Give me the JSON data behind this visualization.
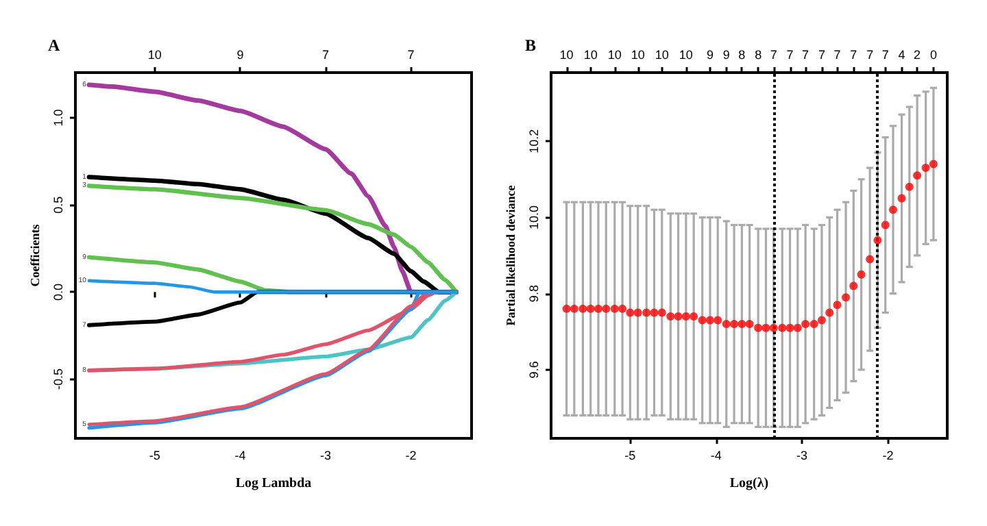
{
  "chart_data": [
    {
      "type": "line",
      "title": "A",
      "xlabel": "Log Lambda",
      "ylabel": "Coefficients",
      "line_style": "solid",
      "xlim": [
        -5.93,
        -1.29
      ],
      "xticks": [
        -5,
        -4,
        -3,
        -2
      ],
      "annotations": [
        {
          "text": "10",
          "x": -5
        },
        {
          "text": "9",
          "x": -4
        },
        {
          "text": "7",
          "x": -3
        },
        {
          "text": "7",
          "x": -2
        }
      ],
      "ylim": [
        -0.84,
        1.26
      ],
      "yticks": [
        {
          "value": -0.5,
          "label": "-0.5"
        },
        {
          "value": 0,
          "label": "0.0"
        },
        {
          "value": 0.5,
          "label": "0.5"
        },
        {
          "value": 1,
          "label": "1.0"
        }
      ],
      "series": [
        {
          "name": "6",
          "color": "#a53a9e",
          "x": [
            -5.77,
            -5.5,
            -5,
            -4.5,
            -4,
            -3.5,
            -3,
            -2.7,
            -2.5,
            -2.3,
            -2.2,
            -2.1,
            -2,
            -1.47
          ],
          "values": [
            1.19,
            1.18,
            1.15,
            1.1,
            1.04,
            0.95,
            0.82,
            0.68,
            0.55,
            0.38,
            0.26,
            0.12,
            0,
            0
          ]
        },
        {
          "name": "1",
          "color": "#000000",
          "x": [
            -5.77,
            -5,
            -4.5,
            -4,
            -3.5,
            -3,
            -2.5,
            -2.2,
            -2,
            -1.85,
            -1.67,
            -1.47
          ],
          "values": [
            0.66,
            0.64,
            0.62,
            0.59,
            0.53,
            0.45,
            0.31,
            0.22,
            0.12,
            0.06,
            0,
            0
          ]
        },
        {
          "name": "3",
          "color": "#61c04f",
          "x": [
            -5.77,
            -5,
            -4,
            -3,
            -2.5,
            -2.2,
            -2,
            -1.8,
            -1.6,
            -1.47
          ],
          "values": [
            0.61,
            0.59,
            0.54,
            0.47,
            0.39,
            0.33,
            0.26,
            0.17,
            0.07,
            0
          ]
        },
        {
          "name": "9",
          "color": "#61c04f",
          "x": [
            -5.77,
            -5,
            -4.5,
            -4,
            -3.7,
            -3.4,
            -1.47
          ],
          "values": [
            0.2,
            0.17,
            0.13,
            0.06,
            0.01,
            0,
            0
          ]
        },
        {
          "name": "7",
          "color": "#000000",
          "x": [
            -5.77,
            -5,
            -4.5,
            -4,
            -3.8,
            -1.47
          ],
          "values": [
            -0.19,
            -0.17,
            -0.13,
            -0.06,
            0,
            0
          ]
        },
        {
          "name": "8",
          "color": "#4cc3c6",
          "x": [
            -5.77,
            -5,
            -4,
            -3,
            -2.5,
            -2,
            -1.8,
            -1.6,
            -1.47
          ],
          "values": [
            -0.45,
            -0.44,
            -0.41,
            -0.37,
            -0.33,
            -0.26,
            -0.16,
            -0.05,
            0
          ]
        },
        {
          "color": "#df536b",
          "x": [
            -5.77,
            -5,
            -4,
            -3.5,
            -3,
            -2.5,
            -2,
            -1.8,
            -1.7,
            -1.47
          ],
          "values": [
            -0.45,
            -0.44,
            -0.4,
            -0.36,
            -0.3,
            -0.22,
            -0.1,
            -0.02,
            0,
            0
          ]
        },
        {
          "color": "#2297e6",
          "x": [
            -5.77,
            -5,
            -4,
            -3,
            -2.5,
            -2,
            -1.9,
            -1.47
          ],
          "values": [
            -0.78,
            -0.75,
            -0.67,
            -0.48,
            -0.34,
            -0.1,
            0,
            0
          ]
        },
        {
          "name": "5",
          "color": "#df536b",
          "x": [
            -5.77,
            -5,
            -4,
            -3,
            -2.5,
            -2,
            -1.8,
            -1.47
          ],
          "values": [
            -0.76,
            -0.74,
            -0.66,
            -0.47,
            -0.33,
            -0.08,
            0,
            0
          ]
        },
        {
          "name": "10",
          "color": "#2297e6",
          "x": [
            -5.77,
            -5,
            -4.6,
            -4.3,
            -1.47
          ],
          "values": [
            0.065,
            0.05,
            0.03,
            0,
            0
          ]
        }
      ]
    },
    {
      "type": "scatter",
      "title": "B",
      "xlabel": "Log(λ)",
      "ylabel": "Partial likelihood deviance",
      "marker": "circle",
      "xlim": [
        -5.92,
        -1.31
      ],
      "xticks": [
        -5,
        -4,
        -3,
        -2
      ],
      "annotations": [
        {
          "text": "10",
          "x": -5.74
        },
        {
          "text": "10",
          "x": -5.46
        },
        {
          "text": "10",
          "x": -5.18
        },
        {
          "text": "10",
          "x": -4.91
        },
        {
          "text": "10",
          "x": -4.63
        },
        {
          "text": "10",
          "x": -4.35
        },
        {
          "text": "9",
          "x": -4.07
        },
        {
          "text": "9",
          "x": -3.88
        },
        {
          "text": "8",
          "x": -3.7
        },
        {
          "text": "8",
          "x": -3.51
        },
        {
          "text": "7",
          "x": -3.33
        },
        {
          "text": "7",
          "x": -3.14
        },
        {
          "text": "7",
          "x": -2.96
        },
        {
          "text": "7",
          "x": -2.77
        },
        {
          "text": "7",
          "x": -2.59
        },
        {
          "text": "7",
          "x": -2.4
        },
        {
          "text": "7",
          "x": -2.21
        },
        {
          "text": "7",
          "x": -2.03
        },
        {
          "text": "4",
          "x": -1.84
        },
        {
          "text": "2",
          "x": -1.66
        },
        {
          "text": "0",
          "x": -1.47
        }
      ],
      "ylim": [
        9.42,
        10.38
      ],
      "yticks": [
        9.6,
        9.8,
        {
          "value": 10,
          "label": "10.0"
        },
        10.2
      ],
      "ref_lines": [
        {
          "axis": "x",
          "value": -3.33,
          "color": "#000000",
          "line_style": "dotted"
        },
        {
          "axis": "x",
          "value": -2.12,
          "color": "#000000",
          "line_style": "dotted"
        }
      ],
      "series": [
        {
          "color": "#ff0000",
          "x": [
            -5.74,
            -5.65,
            -5.55,
            -5.46,
            -5.37,
            -5.28,
            -5.18,
            -5.09,
            -5.0,
            -4.91,
            -4.81,
            -4.72,
            -4.63,
            -4.53,
            -4.44,
            -4.35,
            -4.26,
            -4.16,
            -4.07,
            -3.98,
            -3.88,
            -3.79,
            -3.7,
            -3.61,
            -3.51,
            -3.42,
            -3.33,
            -3.23,
            -3.14,
            -3.05,
            -2.96,
            -2.86,
            -2.77,
            -2.68,
            -2.59,
            -2.49,
            -2.4,
            -2.31,
            -2.21,
            -2.12,
            -2.03,
            -1.94,
            -1.84,
            -1.75,
            -1.66,
            -1.56,
            -1.47
          ],
          "values": [
            9.76,
            9.76,
            9.76,
            9.76,
            9.76,
            9.76,
            9.76,
            9.76,
            9.75,
            9.75,
            9.75,
            9.75,
            9.75,
            9.74,
            9.74,
            9.74,
            9.74,
            9.73,
            9.73,
            9.73,
            9.72,
            9.72,
            9.72,
            9.72,
            9.71,
            9.71,
            9.71,
            9.71,
            9.71,
            9.71,
            9.72,
            9.72,
            9.73,
            9.75,
            9.77,
            9.79,
            9.82,
            9.85,
            9.89,
            9.94,
            9.98,
            10.02,
            10.05,
            10.08,
            10.11,
            10.13,
            10.14
          ],
          "errors": [
            0.28,
            0.28,
            0.28,
            0.28,
            0.28,
            0.28,
            0.28,
            0.28,
            0.28,
            0.28,
            0.28,
            0.27,
            0.27,
            0.27,
            0.27,
            0.27,
            0.27,
            0.27,
            0.27,
            0.27,
            0.27,
            0.26,
            0.26,
            0.26,
            0.26,
            0.26,
            0.26,
            0.26,
            0.26,
            0.26,
            0.26,
            0.25,
            0.25,
            0.25,
            0.25,
            0.25,
            0.25,
            0.25,
            0.24,
            0.23,
            0.23,
            0.22,
            0.22,
            0.21,
            0.21,
            0.2,
            0.2
          ]
        }
      ]
    }
  ]
}
